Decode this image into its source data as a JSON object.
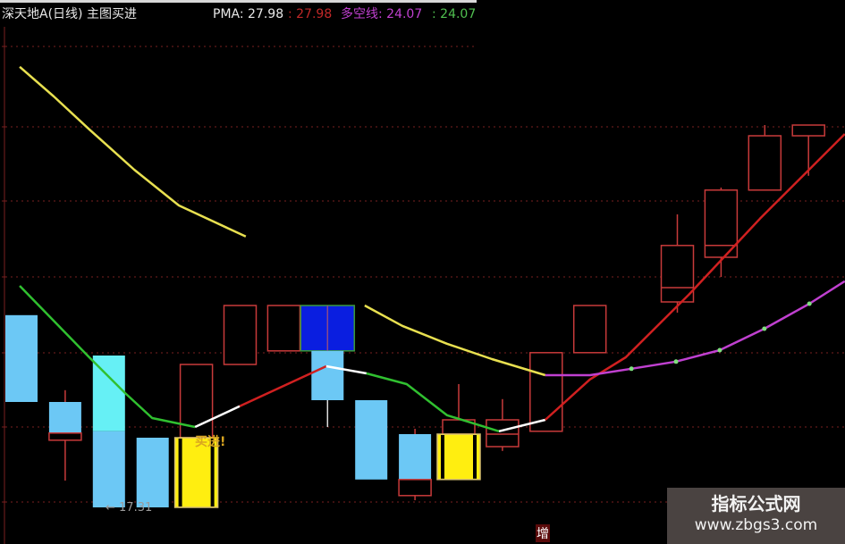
{
  "header": {
    "title": "深天地A(日线) 主图买进",
    "pma_label": "PMA: 27.98",
    "pma_value2": ": 27.98",
    "dk_label": "多空线: 24.07",
    "dk_value2": ": 24.07"
  },
  "labels": {
    "low_marker": "← 17.31",
    "buy_signal": "买进!",
    "increase_marker": "增"
  },
  "watermark": {
    "line1": "指标公式网",
    "line2": "www.zbgs3.com"
  },
  "colors": {
    "background": "#000000",
    "up_outline": "#c83a3a",
    "down_fill": "#6cc8f5",
    "cyan_fill": "#66f0f5",
    "blue_fill": "#0a1ee0",
    "yellow_fill": "#ffee10",
    "pma_yellow": "#e8e050",
    "line_green": "#30c030",
    "line_red": "#d02020",
    "line_white": "#ffffff",
    "line_magenta": "#c040d0",
    "grid": "#7a2020"
  },
  "chart_data": {
    "type": "candlestick",
    "title": "",
    "xlabel": "",
    "ylabel": "",
    "grid": true,
    "ylim": [
      17.0,
      30.0
    ],
    "candles": [
      {
        "boxes": [
          {
            "top": 22.69,
            "bot": 20.26,
            "style": "down"
          }
        ]
      },
      {
        "boxes": [
          {
            "top": 20.26,
            "bot": 19.39,
            "style": "down"
          },
          {
            "top": 19.39,
            "bot": 19.19,
            "style": "up"
          }
        ],
        "high": 20.59,
        "low": 18.06,
        "wick": "up"
      },
      {
        "boxes": [
          {
            "top": 21.56,
            "bot": 19.44,
            "style": "cyan"
          },
          {
            "top": 19.44,
            "bot": 17.31,
            "style": "down"
          }
        ]
      },
      {
        "boxes": [
          {
            "top": 19.26,
            "bot": 17.31,
            "style": "down"
          }
        ]
      },
      {
        "boxes": [
          {
            "top": 21.31,
            "bot": 19.26,
            "style": "up"
          },
          {
            "top": 19.26,
            "bot": 17.31,
            "style": "yellow"
          }
        ]
      },
      {
        "boxes": [
          {
            "top": 22.96,
            "bot": 21.31,
            "style": "up"
          }
        ]
      },
      {
        "boxes": [
          {
            "top": 22.96,
            "bot": 21.69,
            "style": "up"
          }
        ]
      },
      {
        "boxes": [
          {
            "top": 22.96,
            "bot": 21.69,
            "style": "blue"
          },
          {
            "top": 21.69,
            "bot": 20.31,
            "style": "down"
          }
        ],
        "high": 20.31,
        "low": 19.56,
        "wick": "white"
      },
      {
        "boxes": [
          {
            "top": 20.31,
            "bot": 18.09,
            "style": "down"
          }
        ]
      },
      {
        "boxes": [
          {
            "top": 19.36,
            "bot": 18.09,
            "style": "down"
          },
          {
            "top": 18.09,
            "bot": 17.64,
            "style": "up"
          }
        ],
        "high": 19.51,
        "low": 17.51,
        "wick": "up"
      },
      {
        "boxes": [
          {
            "top": 19.76,
            "bot": 19.36,
            "style": "up"
          },
          {
            "top": 19.36,
            "bot": 18.09,
            "style": "yellow"
          }
        ],
        "high": 20.76,
        "low": 19.36,
        "wick": "up"
      },
      {
        "boxes": [
          {
            "top": 19.76,
            "bot": 19.01,
            "style": "up"
          }
        ],
        "mid": 19.36,
        "high": 20.34,
        "low": 18.89,
        "wick": "up"
      },
      {
        "boxes": [
          {
            "top": 21.64,
            "bot": 19.44,
            "style": "up"
          }
        ]
      },
      {
        "boxes": [
          {
            "top": 22.96,
            "bot": 21.64,
            "style": "up"
          }
        ]
      },
      {
        "boxes": []
      },
      {
        "boxes": [
          {
            "top": 24.64,
            "bot": 23.06,
            "style": "up"
          }
        ],
        "mid": 23.46,
        "high": 25.51,
        "low": 22.76,
        "wick": "up"
      },
      {
        "boxes": [
          {
            "top": 26.19,
            "bot": 24.31,
            "style": "up"
          }
        ],
        "mid": 24.64,
        "high": 26.26,
        "low": 23.76,
        "wick": "up"
      },
      {
        "boxes": [
          {
            "top": 27.71,
            "bot": 26.19,
            "style": "up"
          }
        ],
        "high": 28.01,
        "low": 26.19,
        "wick": "up"
      },
      {
        "boxes": [
          {
            "top": 28.01,
            "bot": 27.71,
            "style": "up"
          }
        ],
        "high": 28.01,
        "low": 26.59,
        "wick": "up"
      }
    ],
    "lines": [
      {
        "color": "pma_yellow",
        "points": [
          [
            -0.04,
            29.64
          ],
          [
            0.74,
            28.81
          ],
          [
            1.55,
            27.89
          ],
          [
            2.58,
            26.76
          ],
          [
            3.6,
            25.76
          ],
          [
            5.13,
            24.89
          ]
        ]
      },
      {
        "color": "pma_yellow",
        "points": [
          [
            7.85,
            22.96
          ],
          [
            8.71,
            22.39
          ],
          [
            9.73,
            21.89
          ],
          [
            10.76,
            21.46
          ],
          [
            11.98,
            21.01
          ]
        ]
      },
      {
        "color": "line_green",
        "points": [
          [
            -0.04,
            23.51
          ],
          [
            1.55,
            21.51
          ],
          [
            2.37,
            20.51
          ],
          [
            2.99,
            19.81
          ],
          [
            3.97,
            19.56
          ]
        ]
      },
      {
        "color": "line_white",
        "points": [
          [
            3.97,
            19.56
          ],
          [
            4.99,
            20.14
          ]
        ]
      },
      {
        "color": "line_red",
        "points": [
          [
            4.99,
            20.14
          ],
          [
            6.97,
            21.26
          ]
        ]
      },
      {
        "color": "line_white",
        "points": [
          [
            6.97,
            21.26
          ],
          [
            7.89,
            21.06
          ]
        ]
      },
      {
        "color": "line_green",
        "points": [
          [
            7.89,
            21.06
          ],
          [
            8.81,
            20.76
          ],
          [
            9.73,
            19.89
          ],
          [
            10.92,
            19.44
          ]
        ]
      },
      {
        "color": "line_white",
        "points": [
          [
            10.92,
            19.44
          ],
          [
            11.98,
            19.76
          ]
        ]
      },
      {
        "color": "line_red",
        "points": [
          [
            11.98,
            19.76
          ],
          [
            13.0,
            20.89
          ],
          [
            13.82,
            21.51
          ],
          [
            15.26,
            23.26
          ],
          [
            16.89,
            25.39
          ],
          [
            18.83,
            27.76
          ]
        ]
      },
      {
        "color": "line_magenta",
        "points": [
          [
            11.98,
            21.01
          ],
          [
            13.0,
            21.01
          ],
          [
            13.95,
            21.19
          ],
          [
            14.97,
            21.39
          ],
          [
            15.97,
            21.71
          ],
          [
            16.99,
            22.31
          ],
          [
            18.02,
            23.01
          ],
          [
            18.83,
            23.64
          ]
        ]
      }
    ],
    "markers": [
      [
        13.95,
        21.19
      ],
      [
        14.97,
        21.39
      ],
      [
        15.97,
        21.71
      ],
      [
        16.99,
        22.31
      ],
      [
        18.02,
        23.01
      ]
    ],
    "annotations": {
      "low": 17.31,
      "pma": 27.98,
      "duokong": 24.07
    }
  }
}
